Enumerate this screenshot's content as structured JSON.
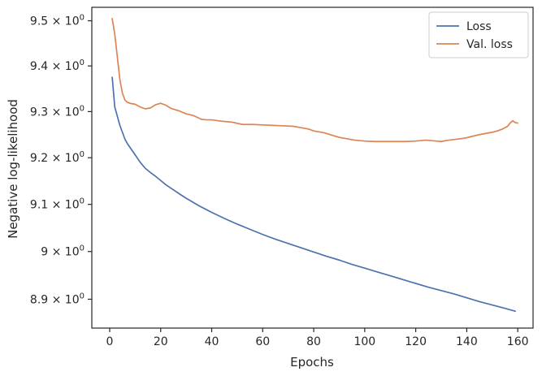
{
  "chart_data": {
    "type": "line",
    "xlabel": "Epochs",
    "ylabel": "Negative log-likelihood",
    "xlim": [
      -7,
      166
    ],
    "ylim": [
      8.84,
      9.53
    ],
    "y_scale": "log",
    "grid": false,
    "legend_position": "top-right",
    "x_ticks": [
      0,
      20,
      40,
      60,
      80,
      100,
      120,
      140,
      160
    ],
    "x_tick_labels": [
      "0",
      "20",
      "40",
      "60",
      "80",
      "100",
      "120",
      "140",
      "160"
    ],
    "y_ticks": [
      8.9,
      9.0,
      9.1,
      9.2,
      9.3,
      9.4,
      9.5
    ],
    "y_tick_labels": [
      {
        "mantissa": "8.9",
        "times": "×",
        "base": "10",
        "exp": "0"
      },
      {
        "mantissa": "9",
        "times": "×",
        "base": "10",
        "exp": "0"
      },
      {
        "mantissa": "9.1",
        "times": "×",
        "base": "10",
        "exp": "0"
      },
      {
        "mantissa": "9.2",
        "times": "×",
        "base": "10",
        "exp": "0"
      },
      {
        "mantissa": "9.3",
        "times": "×",
        "base": "10",
        "exp": "0"
      },
      {
        "mantissa": "9.4",
        "times": "×",
        "base": "10",
        "exp": "0"
      },
      {
        "mantissa": "9.5",
        "times": "×",
        "base": "10",
        "exp": "0"
      }
    ],
    "series": [
      {
        "name": "Loss",
        "color": "#4c72b0",
        "points": [
          [
            1,
            9.375
          ],
          [
            2,
            9.31
          ],
          [
            3,
            9.29
          ],
          [
            4,
            9.27
          ],
          [
            5,
            9.255
          ],
          [
            6,
            9.24
          ],
          [
            7,
            9.23
          ],
          [
            8,
            9.222
          ],
          [
            10,
            9.206
          ],
          [
            12,
            9.19
          ],
          [
            14,
            9.177
          ],
          [
            16,
            9.168
          ],
          [
            18,
            9.16
          ],
          [
            20,
            9.151
          ],
          [
            22,
            9.142
          ],
          [
            25,
            9.131
          ],
          [
            28,
            9.12
          ],
          [
            30,
            9.113
          ],
          [
            35,
            9.097
          ],
          [
            40,
            9.083
          ],
          [
            45,
            9.07
          ],
          [
            50,
            9.058
          ],
          [
            55,
            9.047
          ],
          [
            60,
            9.036
          ],
          [
            65,
            9.026
          ],
          [
            70,
            9.017
          ],
          [
            75,
            9.008
          ],
          [
            80,
            8.999
          ],
          [
            85,
            8.99
          ],
          [
            90,
            8.982
          ],
          [
            95,
            8.973
          ],
          [
            100,
            8.965
          ],
          [
            105,
            8.957
          ],
          [
            110,
            8.949
          ],
          [
            115,
            8.941
          ],
          [
            120,
            8.933
          ],
          [
            125,
            8.925
          ],
          [
            130,
            8.918
          ],
          [
            135,
            8.911
          ],
          [
            140,
            8.903
          ],
          [
            145,
            8.895
          ],
          [
            150,
            8.888
          ],
          [
            155,
            8.881
          ],
          [
            159,
            8.875
          ]
        ]
      },
      {
        "name": "Val. loss",
        "color": "#dd8452",
        "points": [
          [
            1,
            9.505
          ],
          [
            2,
            9.47
          ],
          [
            3,
            9.42
          ],
          [
            4,
            9.37
          ],
          [
            5,
            9.34
          ],
          [
            6,
            9.325
          ],
          [
            7,
            9.32
          ],
          [
            8,
            9.318
          ],
          [
            10,
            9.316
          ],
          [
            12,
            9.31
          ],
          [
            14,
            9.306
          ],
          [
            16,
            9.308
          ],
          [
            18,
            9.315
          ],
          [
            20,
            9.318
          ],
          [
            22,
            9.314
          ],
          [
            24,
            9.307
          ],
          [
            27,
            9.302
          ],
          [
            30,
            9.295
          ],
          [
            33,
            9.291
          ],
          [
            36,
            9.283
          ],
          [
            38,
            9.282
          ],
          [
            40,
            9.282
          ],
          [
            44,
            9.279
          ],
          [
            48,
            9.277
          ],
          [
            52,
            9.272
          ],
          [
            56,
            9.272
          ],
          [
            60,
            9.271
          ],
          [
            64,
            9.27
          ],
          [
            68,
            9.269
          ],
          [
            72,
            9.268
          ],
          [
            75,
            9.265
          ],
          [
            78,
            9.262
          ],
          [
            80,
            9.258
          ],
          [
            82,
            9.256
          ],
          [
            84,
            9.254
          ],
          [
            87,
            9.249
          ],
          [
            90,
            9.244
          ],
          [
            93,
            9.241
          ],
          [
            96,
            9.238
          ],
          [
            100,
            9.236
          ],
          [
            104,
            9.235
          ],
          [
            108,
            9.235
          ],
          [
            112,
            9.235
          ],
          [
            116,
            9.235
          ],
          [
            120,
            9.236
          ],
          [
            124,
            9.238
          ],
          [
            128,
            9.236
          ],
          [
            130,
            9.235
          ],
          [
            133,
            9.238
          ],
          [
            136,
            9.24
          ],
          [
            139,
            9.242
          ],
          [
            142,
            9.246
          ],
          [
            145,
            9.25
          ],
          [
            148,
            9.253
          ],
          [
            150,
            9.255
          ],
          [
            152,
            9.258
          ],
          [
            154,
            9.262
          ],
          [
            156,
            9.268
          ],
          [
            157,
            9.275
          ],
          [
            158,
            9.28
          ],
          [
            159,
            9.276
          ],
          [
            160,
            9.275
          ]
        ]
      }
    ]
  }
}
